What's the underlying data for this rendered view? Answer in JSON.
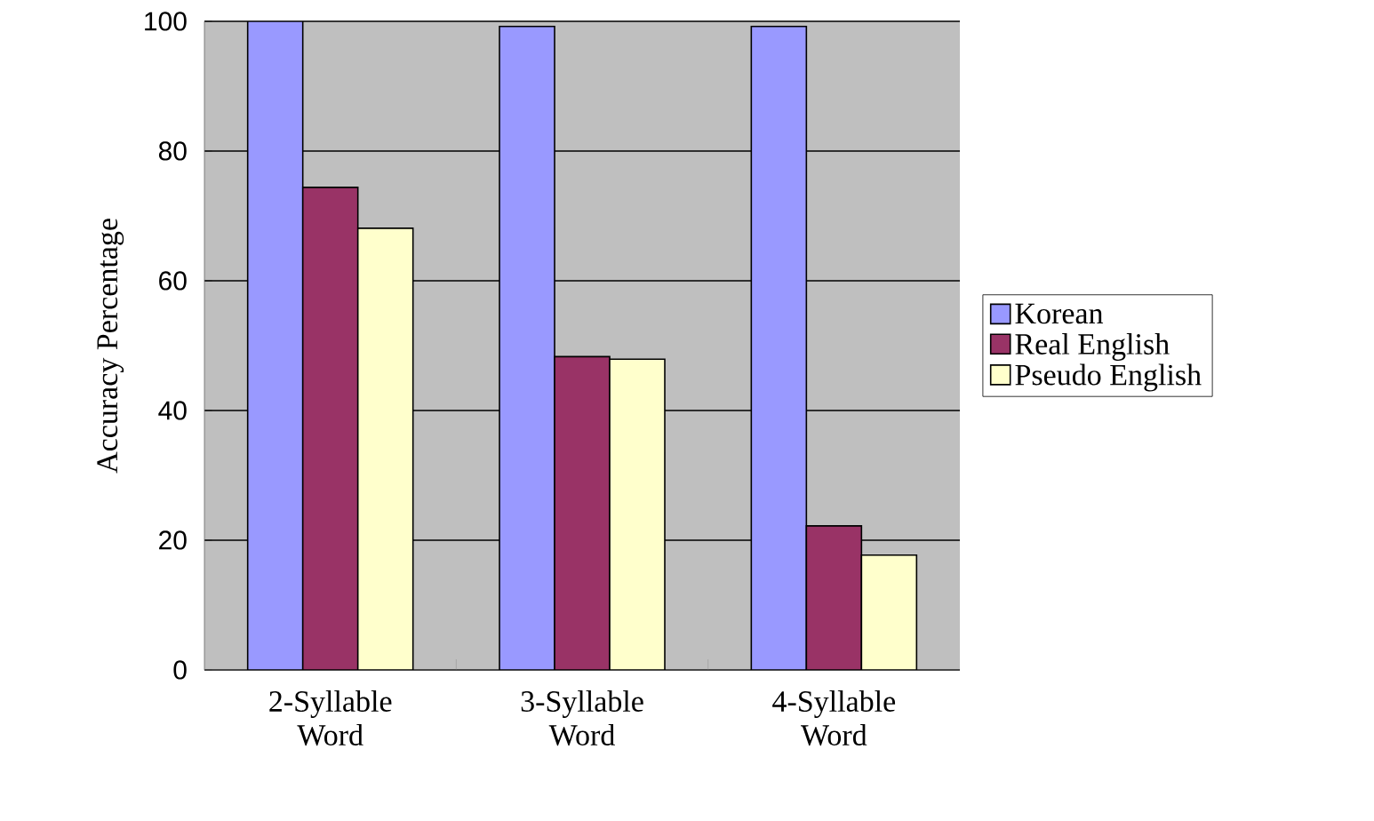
{
  "chart_data": {
    "type": "bar",
    "ylabel": "Accuracy Percentage",
    "categories": [
      "2-Syllable Word",
      "3-Syllable Word",
      "4-Syllable Word"
    ],
    "series": [
      {
        "name": "Korean",
        "color": "#9999ff",
        "values": [
          100,
          99.2,
          99.2
        ]
      },
      {
        "name": "Real English",
        "color": "#993366",
        "values": [
          74.4,
          48.3,
          22.2
        ]
      },
      {
        "name": "Pseudo English",
        "color": "#ffffcc",
        "values": [
          68.1,
          47.9,
          17.7
        ]
      }
    ],
    "ylim": [
      0,
      100
    ],
    "yticks": [
      0,
      20,
      40,
      60,
      80,
      100
    ],
    "grid": "y",
    "legend": "right"
  }
}
